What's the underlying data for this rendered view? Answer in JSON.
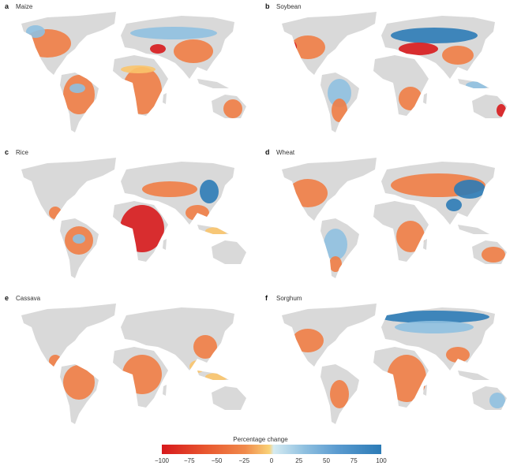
{
  "panels": [
    {
      "letter": "a",
      "title": "Maize"
    },
    {
      "letter": "b",
      "title": "Soybean"
    },
    {
      "letter": "c",
      "title": "Rice"
    },
    {
      "letter": "d",
      "title": "Wheat"
    },
    {
      "letter": "e",
      "title": "Cassava"
    },
    {
      "letter": "f",
      "title": "Sorghum"
    }
  ],
  "colorbar": {
    "title": "Percentage change",
    "ticks": [
      "−100",
      "−75",
      "−50",
      "−25",
      "0",
      "25",
      "50",
      "75",
      "100"
    ],
    "range": [
      -100,
      100
    ],
    "colors": {
      "land": "#d9d9d9",
      "strong_loss": "#d7191c",
      "loss": "#ef7d45",
      "mild_loss": "#f9c46b",
      "gain": "#8fc0e0",
      "strong_gain": "#2c7bb6"
    }
  }
}
